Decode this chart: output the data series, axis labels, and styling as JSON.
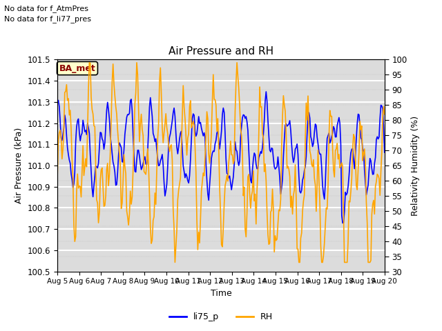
{
  "title": "Air Pressure and RH",
  "ylabel_left": "Air Pressure (kPa)",
  "ylabel_right": "Relativity Humidity (%)",
  "xlabel": "Time",
  "annotation_line1": "No data for f_AtmPres",
  "annotation_line2": "No data for f_li77_pres",
  "label_box": "BA_met",
  "legend_labels": [
    "li75_p",
    "RH"
  ],
  "line_color_blue": "#0000ff",
  "line_color_orange": "#ffa500",
  "ylim_left": [
    100.5,
    101.5
  ],
  "ylim_right": [
    30,
    100
  ],
  "yticks_left": [
    100.5,
    100.6,
    100.7,
    100.8,
    100.9,
    101.0,
    101.1,
    101.2,
    101.3,
    101.4,
    101.5
  ],
  "yticks_right": [
    30,
    35,
    40,
    45,
    50,
    55,
    60,
    65,
    70,
    75,
    80,
    85,
    90,
    95,
    100
  ],
  "xticklabels": [
    "Aug 5",
    "Aug 6",
    "Aug 7",
    "Aug 8",
    "Aug 9",
    "Aug 10",
    "Aug 11",
    "Aug 12",
    "Aug 13",
    "Aug 14",
    "Aug 15",
    "Aug 16",
    "Aug 17",
    "Aug 18",
    "Aug 19",
    "Aug 20"
  ],
  "n_xticks": 16,
  "bg_color": "#dcdcdc",
  "grid_color": "white",
  "figsize": [
    6.4,
    4.8
  ],
  "dpi": 100
}
